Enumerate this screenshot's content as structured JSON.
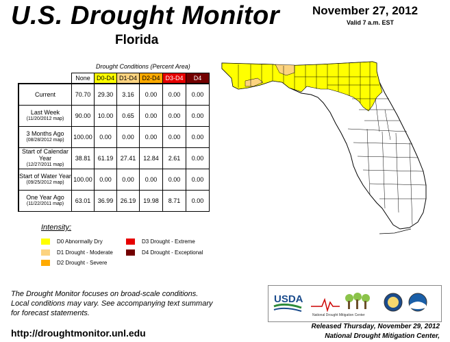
{
  "header": {
    "title": "U.S. Drought Monitor",
    "date": "November 27, 2012",
    "valid": "Valid 7 a.m. EST",
    "state": "Florida"
  },
  "table": {
    "caption": "Drought Conditions (Percent Area)",
    "columns": [
      {
        "label": "None",
        "color": "#ffffff",
        "text_color": "#000000"
      },
      {
        "label": "D0-D4",
        "color": "#ffff00",
        "text_color": "#000000"
      },
      {
        "label": "D1-D4",
        "color": "#fcd37f",
        "text_color": "#000000"
      },
      {
        "label": "D2-D4",
        "color": "#ffaa00",
        "text_color": "#000000"
      },
      {
        "label": "D3-D4",
        "color": "#e60000",
        "text_color": "#ffffff"
      },
      {
        "label": "D4",
        "color": "#730000",
        "text_color": "#ffffff"
      }
    ],
    "rows": [
      {
        "label": "Current",
        "sub": "",
        "values": [
          "70.70",
          "29.30",
          "3.16",
          "0.00",
          "0.00",
          "0.00"
        ]
      },
      {
        "label": "Last Week",
        "sub": "(11/20/2012 map)",
        "values": [
          "90.00",
          "10.00",
          "0.65",
          "0.00",
          "0.00",
          "0.00"
        ]
      },
      {
        "label": "3 Months Ago",
        "sub": "(08/28/2012 map)",
        "values": [
          "100.00",
          "0.00",
          "0.00",
          "0.00",
          "0.00",
          "0.00"
        ]
      },
      {
        "label": "Start of Calendar Year",
        "sub": "(12/27/2011 map)",
        "values": [
          "38.81",
          "61.19",
          "27.41",
          "12.84",
          "2.61",
          "0.00"
        ]
      },
      {
        "label": "Start of Water Year",
        "sub": "(09/25/2012 map)",
        "values": [
          "100.00",
          "0.00",
          "0.00",
          "0.00",
          "0.00",
          "0.00"
        ]
      },
      {
        "label": "One Year Ago",
        "sub": "(11/22/2011 map)",
        "values": [
          "63.01",
          "36.99",
          "26.19",
          "19.98",
          "8.71",
          "0.00"
        ]
      }
    ]
  },
  "legend": {
    "title": "Intensity:",
    "items": [
      {
        "label": "D0 Abnormally Dry",
        "color": "#ffff00"
      },
      {
        "label": "D1 Drought - Moderate",
        "color": "#fcd37f"
      },
      {
        "label": "D2 Drought - Severe",
        "color": "#ffaa00"
      },
      {
        "label": "D3 Drought - Extreme",
        "color": "#e60000"
      },
      {
        "label": "D4 Drought - Exceptional",
        "color": "#730000"
      }
    ]
  },
  "footer": {
    "disclaimer_1": "The Drought Monitor focuses on broad-scale conditions.",
    "disclaimer_2": "Local conditions may vary. See accompanying text summary",
    "disclaimer_3": "for forecast statements.",
    "url": "http://droughtmonitor.unl.edu",
    "released_1": "Released Thursday, November 29, 2012",
    "released_2": "National Drought Mitigation Center,"
  },
  "logos": {
    "usda": "USDA",
    "ndmc": "National Drought Mitigation Center"
  }
}
